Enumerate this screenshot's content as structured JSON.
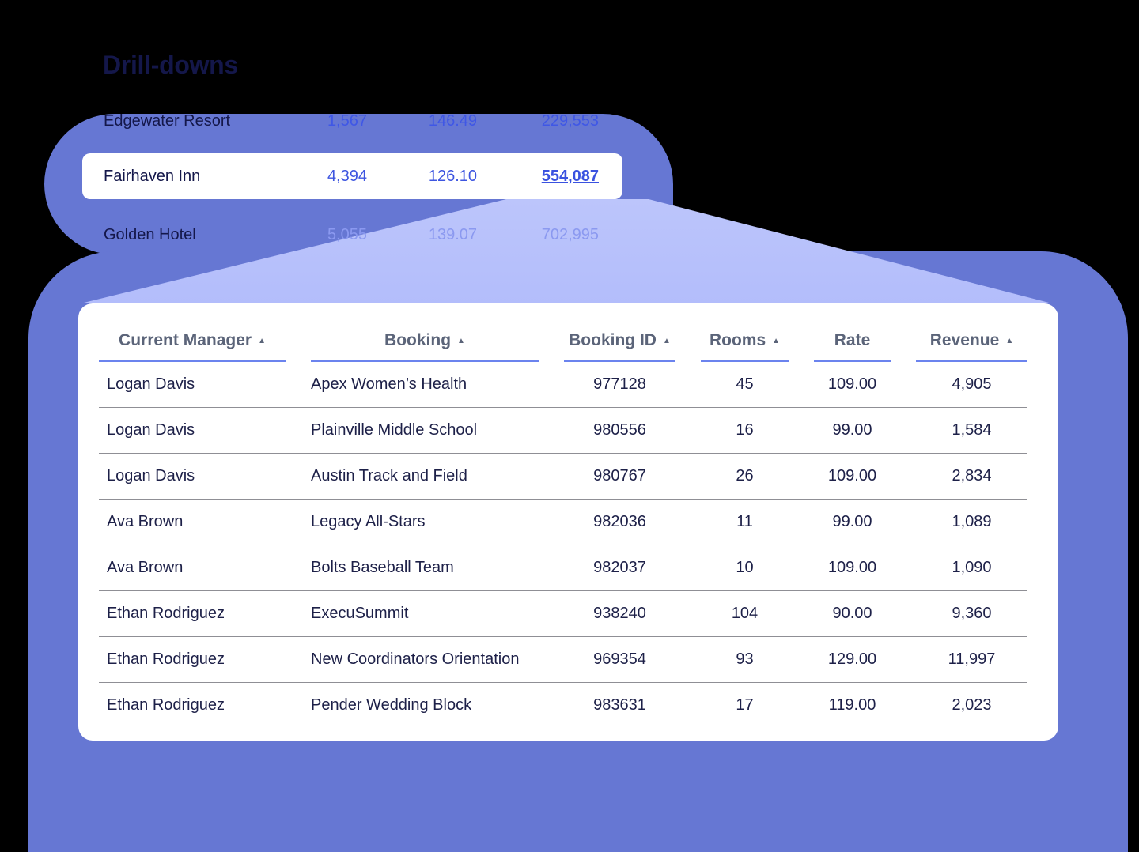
{
  "title": "Drill-downs",
  "summary_rows": [
    {
      "name": "Edgewater Resort",
      "rooms": "1,567",
      "rate": "146.49",
      "revenue": "229,553",
      "state": "dim"
    },
    {
      "name": "Fairhaven Inn",
      "rooms": "4,394",
      "rate": "126.10",
      "revenue": "554,087",
      "state": "selected"
    },
    {
      "name": "Golden Hotel",
      "rooms": "5,055",
      "rate": "139.07",
      "revenue": "702,995",
      "state": "dim"
    }
  ],
  "table": {
    "columns": [
      {
        "label": "Current Manager",
        "sortable": true,
        "sort_icon": "▲"
      },
      {
        "label": "Booking",
        "sortable": true,
        "sort_icon": "▲"
      },
      {
        "label": "Booking ID",
        "sortable": true,
        "sort_icon": "▲"
      },
      {
        "label": "Rooms",
        "sortable": true,
        "sort_icon": "▲"
      },
      {
        "label": "Rate",
        "sortable": false
      },
      {
        "label": "Revenue",
        "sortable": true,
        "sort_icon": "▲"
      }
    ],
    "rows": [
      {
        "manager": "Logan Davis",
        "booking": "Apex Women’s Health",
        "booking_id": "977128",
        "rooms": "45",
        "rate": "109.00",
        "revenue": "4,905"
      },
      {
        "manager": "Logan Davis",
        "booking": "Plainville Middle School",
        "booking_id": "980556",
        "rooms": "16",
        "rate": "99.00",
        "revenue": "1,584"
      },
      {
        "manager": "Logan Davis",
        "booking": "Austin Track and Field",
        "booking_id": "980767",
        "rooms": "26",
        "rate": "109.00",
        "revenue": "2,834"
      },
      {
        "manager": "Ava Brown",
        "booking": "Legacy All-Stars",
        "booking_id": "982036",
        "rooms": "11",
        "rate": "99.00",
        "revenue": "1,089"
      },
      {
        "manager": "Ava Brown",
        "booking": "Bolts Baseball Team",
        "booking_id": "982037",
        "rooms": "10",
        "rate": "109.00",
        "revenue": "1,090"
      },
      {
        "manager": "Ethan Rodriguez",
        "booking": "ExecuSummit",
        "booking_id": "938240",
        "rooms": "104",
        "rate": "90.00",
        "revenue": "9,360"
      },
      {
        "manager": "Ethan Rodriguez",
        "booking": "New Coordinators Orientation",
        "booking_id": "969354",
        "rooms": "93",
        "rate": "129.00",
        "revenue": "11,997"
      },
      {
        "manager": "Ethan Rodriguez",
        "booking": "Pender Wedding Block",
        "booking_id": "983631",
        "rooms": "17",
        "rate": "119.00",
        "revenue": "2,023"
      }
    ]
  },
  "colors": {
    "accent": "#6677d3",
    "connector": "#b8c1fb",
    "link": "#3a52e0",
    "text_dark": "#14174a",
    "header_underline": "#6b83ee"
  }
}
